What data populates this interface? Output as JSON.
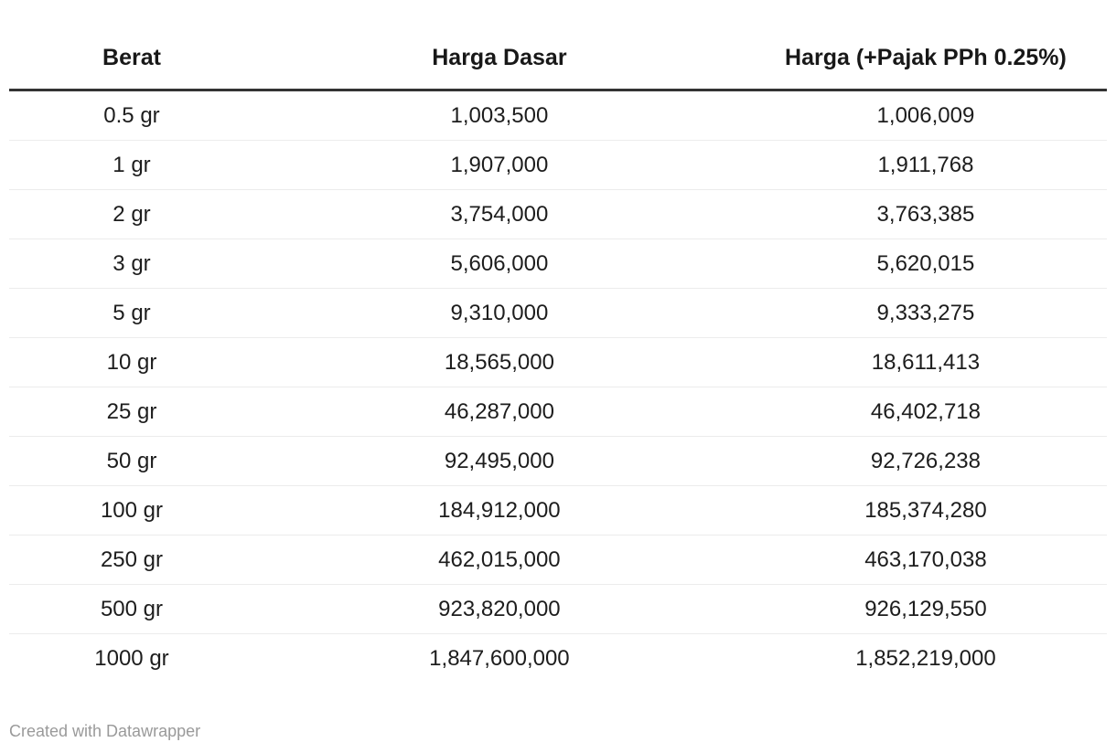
{
  "chart_data": {
    "type": "table",
    "columns": [
      "Berat",
      "Harga Dasar",
      "Harga (+Pajak PPh 0.25%)"
    ],
    "rows": [
      [
        "0.5 gr",
        "1,003,500",
        "1,006,009"
      ],
      [
        "1 gr",
        "1,907,000",
        "1,911,768"
      ],
      [
        "2 gr",
        "3,754,000",
        "3,763,385"
      ],
      [
        "3 gr",
        "5,606,000",
        "5,620,015"
      ],
      [
        "5 gr",
        "9,310,000",
        "9,333,275"
      ],
      [
        "10 gr",
        "18,565,000",
        "18,611,413"
      ],
      [
        "25 gr",
        "46,287,000",
        "46,402,718"
      ],
      [
        "50 gr",
        "92,495,000",
        "92,726,238"
      ],
      [
        "100 gr",
        "184,912,000",
        "185,374,280"
      ],
      [
        "250 gr",
        "462,015,000",
        "463,170,038"
      ],
      [
        "500 gr",
        "923,820,000",
        "926,129,550"
      ],
      [
        "1000 gr",
        "1,847,600,000",
        "1,852,219,000"
      ]
    ],
    "layout": {
      "header_rule_color": "#333333",
      "row_separator_color": "#ececec",
      "text_color": "#1d1d1d",
      "alignment": "center",
      "grid": "horizontal-only"
    }
  },
  "footer": {
    "credit": "Created with Datawrapper",
    "color": "#9a9a9a"
  }
}
